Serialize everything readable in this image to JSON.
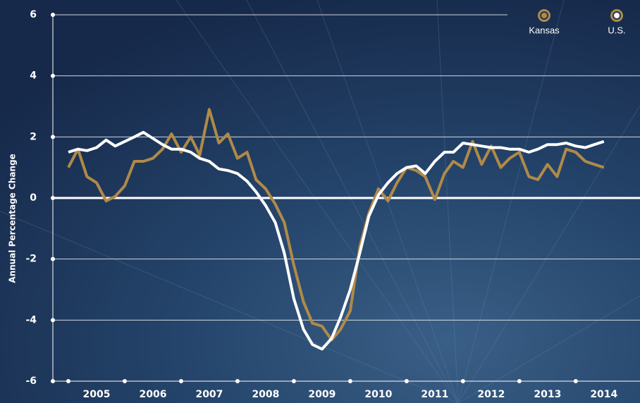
{
  "chart_data": {
    "type": "line",
    "y_label": "Annual Percentage Change",
    "x": [
      2005,
      2005.17,
      2005.33,
      2005.5,
      2005.67,
      2005.83,
      2006,
      2006.17,
      2006.33,
      2006.5,
      2006.67,
      2006.83,
      2007,
      2007.17,
      2007.33,
      2007.5,
      2007.67,
      2007.83,
      2008,
      2008.17,
      2008.33,
      2008.5,
      2008.67,
      2008.83,
      2009,
      2009.17,
      2009.33,
      2009.5,
      2009.67,
      2009.83,
      2010,
      2010.17,
      2010.33,
      2010.5,
      2010.67,
      2010.83,
      2011,
      2011.17,
      2011.33,
      2011.5,
      2011.67,
      2011.83,
      2012,
      2012.17,
      2012.33,
      2012.5,
      2012.67,
      2012.83,
      2013,
      2013.17,
      2013.33,
      2013.5,
      2013.67,
      2013.83,
      2014,
      2014.17,
      2014.33,
      2014.5
    ],
    "series": [
      {
        "name": "Kansas",
        "color": "#b08a48",
        "values": [
          1.0,
          1.6,
          0.7,
          0.5,
          -0.1,
          0.05,
          0.4,
          1.2,
          1.2,
          1.3,
          1.6,
          2.1,
          1.5,
          2.0,
          1.4,
          2.9,
          1.8,
          2.1,
          1.3,
          1.5,
          0.6,
          0.3,
          -0.2,
          -0.8,
          -2.2,
          -3.4,
          -4.1,
          -4.2,
          -4.65,
          -4.3,
          -3.7,
          -1.6,
          -0.5,
          0.3,
          -0.1,
          0.5,
          1.0,
          0.9,
          0.7,
          -0.05,
          0.8,
          1.2,
          1.0,
          1.85,
          1.1,
          1.7,
          1.0,
          1.3,
          1.5,
          0.7,
          0.6,
          1.1,
          0.7,
          1.6,
          1.5,
          1.2,
          1.1,
          1.0
        ]
      },
      {
        "name": "U.S.",
        "color": "#ffffff",
        "values": [
          1.5,
          1.6,
          1.55,
          1.65,
          1.9,
          1.7,
          1.85,
          2.0,
          2.15,
          1.95,
          1.75,
          1.6,
          1.6,
          1.5,
          1.3,
          1.2,
          0.95,
          0.9,
          0.8,
          0.55,
          0.2,
          -0.25,
          -0.8,
          -1.8,
          -3.3,
          -4.3,
          -4.8,
          -4.95,
          -4.6,
          -3.9,
          -3.0,
          -1.8,
          -0.6,
          0.1,
          0.5,
          0.8,
          1.0,
          1.05,
          0.8,
          1.2,
          1.5,
          1.5,
          1.8,
          1.75,
          1.7,
          1.65,
          1.65,
          1.6,
          1.6,
          1.5,
          1.6,
          1.75,
          1.75,
          1.8,
          1.7,
          1.65,
          1.75,
          1.85
        ]
      }
    ],
    "xlim": [
      2004.725,
      2015.14
    ],
    "xticks": [
      2005,
      2006,
      2007,
      2008,
      2009,
      2010,
      2011,
      2012,
      2013,
      2014
    ],
    "ylim": [
      -6,
      6
    ],
    "yticks": [
      -6,
      -4,
      -2,
      0,
      2,
      4,
      6
    ],
    "grid": true,
    "legend": "top-right"
  }
}
